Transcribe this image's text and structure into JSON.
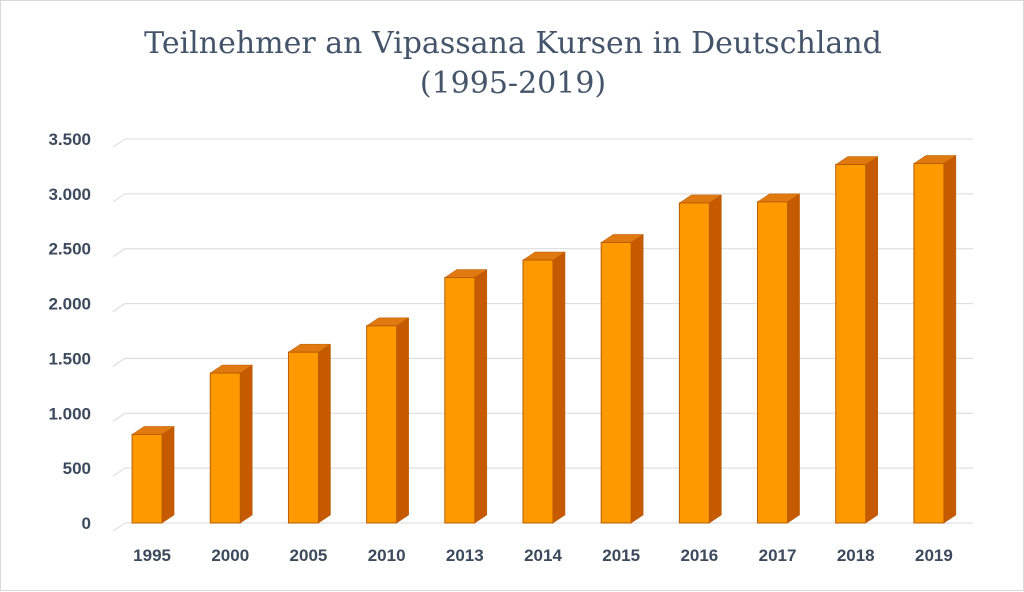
{
  "chart_data": {
    "type": "bar",
    "title": "Teilnehmer an Vipassana Kursen in Deutschland",
    "subtitle": "(1995-2019)",
    "categories": [
      "1995",
      "2000",
      "2005",
      "2010",
      "2013",
      "2014",
      "2015",
      "2016",
      "2017",
      "2018",
      "2019"
    ],
    "values": [
      880,
      1440,
      1630,
      1870,
      2310,
      2470,
      2630,
      2990,
      3000,
      3340,
      3350
    ],
    "ylim": [
      0,
      3500
    ],
    "yticks": [
      0,
      500,
      1000,
      1500,
      2000,
      2500,
      3000,
      3500
    ],
    "ytick_labels": [
      "0",
      "500",
      "1.000",
      "1.500",
      "2.000",
      "2.500",
      "3.000",
      "3.500"
    ],
    "grid": true,
    "legend": "none",
    "colors": {
      "bar_front": "#ff9900",
      "bar_side": "#c55a00",
      "bar_top": "#e07a10",
      "bar_edge": "#b85c00"
    }
  }
}
